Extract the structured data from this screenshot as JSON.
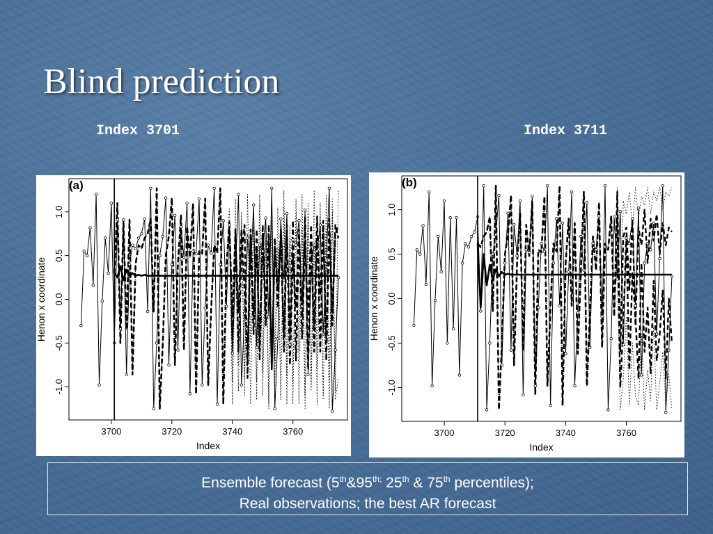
{
  "slide": {
    "title": "Blind prediction",
    "subtitle_left": "Index 3701",
    "subtitle_right": "Index 3711",
    "legend_line1_parts": {
      "a": "Ensemble forecast (5",
      "sup1": "th",
      "b": "&95",
      "sup2": "th;",
      "c": " 25",
      "sup3": "th",
      "d": " & 75",
      "sup4": "th",
      "e": " percentiles);"
    },
    "legend_line2": "Real observations; the best AR forecast"
  },
  "chart_data": [
    {
      "type": "line",
      "panel_label": "(a)",
      "xlabel": "Index",
      "ylabel": "Henon x coordinate",
      "xlim": [
        3686,
        3778
      ],
      "ylim": [
        -1.38,
        1.38
      ],
      "xticks": [
        "3700",
        "3720",
        "3740",
        "3760"
      ],
      "yticks": [
        "-1.0",
        "-0.5",
        "0.0",
        "0.5",
        "1.0"
      ],
      "forecast_origin": 3701,
      "series": [
        {
          "style": "thin-solid-circles",
          "x_start": 3690,
          "values": [
            -0.3,
            0.55,
            0.5,
            0.82,
            0.16,
            1.2,
            -0.98,
            -0.02,
            0.7,
            0.3,
            1.1,
            -0.5,
            0.91,
            -0.34,
            0.91,
            -0.86,
            0.4,
            0.62,
            0.58,
            0.7,
            0.75,
            0.92,
            -0.14,
            1.27,
            -1.25,
            -0.5,
            0.5,
            0.72,
            1.16,
            -0.75,
            0.4,
            0.96,
            -0.58,
            0.83,
            0.48,
            1.1,
            -1.08,
            0.55,
            0.52,
            1.15,
            -0.98,
            -0.1,
            0.62,
            0.53,
            1.27,
            -1.2,
            0.4,
            0.9,
            -0.08,
            0.85,
            -0.62,
            0.3,
            1.2,
            -0.98,
            -0.16,
            0.7,
            0.32,
            1.08,
            -0.55,
            0.62,
            0.55,
            0.93,
            -0.2,
            1.27,
            -1.25,
            -0.45,
            0.92,
            0.22,
            0.98,
            -0.52,
            0.68,
            0.62,
            0.9,
            -0.08,
            1.02,
            -0.86,
            0.4,
            0.62,
            0.55,
            0.85,
            -0.4,
            0.45,
            1.27,
            -1.28,
            -0.58,
            0.25
          ]
        },
        {
          "style": "thick-solid",
          "x_start": 3701,
          "values": [
            0.3,
            0.25,
            0.38,
            0.22,
            0.34,
            0.26,
            0.3,
            0.27,
            0.28,
            0.27,
            0.28,
            0.27,
            0.27,
            0.27,
            0.27,
            0.27,
            0.27,
            0.27,
            0.27,
            0.27,
            0.27,
            0.27,
            0.27,
            0.27,
            0.27,
            0.27,
            0.27,
            0.27,
            0.27,
            0.27,
            0.27,
            0.27,
            0.27,
            0.27,
            0.27,
            0.27,
            0.27,
            0.27,
            0.27,
            0.27,
            0.27,
            0.27,
            0.27,
            0.27,
            0.27,
            0.27,
            0.27,
            0.27,
            0.27,
            0.27,
            0.27,
            0.27,
            0.27,
            0.27,
            0.27,
            0.27,
            0.27,
            0.27,
            0.27,
            0.27,
            0.27,
            0.27,
            0.27,
            0.27,
            0.27,
            0.27,
            0.27,
            0.27,
            0.27,
            0.27,
            0.27,
            0.27,
            0.27,
            0.27,
            0.27
          ]
        },
        {
          "style": "dashed",
          "x_start": 3701,
          "values": [
            0.3,
            1.1,
            -0.5,
            0.91,
            -0.34,
            0.91,
            -0.86,
            0.4,
            0.62,
            0.58,
            0.7,
            0.75,
            0.92,
            -0.14,
            1.27,
            -1.25,
            -0.5,
            0.5,
            0.72,
            1.16,
            -0.75,
            0.4,
            0.96,
            -0.58,
            0.83,
            0.48,
            1.1,
            -1.08,
            0.55,
            0.52,
            1.15,
            -0.98,
            -0.1,
            0.62,
            0.53,
            1.27,
            -1.2,
            0.3,
            0.85,
            -0.2,
            0.8,
            -0.6,
            0.5,
            0.85,
            -0.9,
            0.7,
            -0.4,
            0.8,
            -0.7,
            0.75,
            -0.3,
            0.85,
            -0.8,
            0.7,
            -0.1,
            0.8,
            -0.6,
            0.75,
            -0.45,
            0.9,
            -0.7,
            0.72,
            -0.2,
            0.95,
            -0.8,
            0.6,
            -0.3,
            0.95,
            -0.6,
            0.8,
            -0.45,
            0.92,
            -0.15,
            0.75,
            0.85
          ]
        },
        {
          "style": "dashed",
          "x_start": 3701,
          "values": [
            0.3,
            1.1,
            -0.5,
            0.91,
            -0.34,
            0.91,
            -0.86,
            0.4,
            0.62,
            0.58,
            0.7,
            0.75,
            0.92,
            -0.14,
            1.27,
            -1.25,
            -0.5,
            0.5,
            0.72,
            1.16,
            -0.75,
            0.4,
            0.96,
            -0.58,
            0.83,
            0.48,
            1.1,
            -1.08,
            0.55,
            0.52,
            1.15,
            -0.98,
            -0.1,
            0.62,
            0.53,
            1.27,
            -1.2,
            0.35,
            0.9,
            -0.45,
            0.7,
            -0.15,
            0.8,
            0.1,
            -0.7,
            0.8,
            -0.2,
            0.6,
            -0.55,
            0.85,
            -0.1,
            0.7,
            -0.8,
            0.6,
            0.15,
            0.7,
            -0.4,
            0.85,
            -0.75,
            0.5,
            -0.1,
            0.8,
            -0.45,
            0.65,
            -0.2,
            0.85,
            -0.6,
            0.7,
            0.05,
            0.9,
            -0.7,
            0.8,
            -0.3,
            0.85,
            0.7
          ]
        },
        {
          "style": "dotted",
          "x_start": 3701,
          "values": [
            0.3,
            1.1,
            -0.5,
            0.91,
            -0.34,
            0.91,
            -0.86,
            0.4,
            0.62,
            0.58,
            0.7,
            0.75,
            0.92,
            -0.14,
            1.27,
            -1.25,
            -0.5,
            0.5,
            0.72,
            1.16,
            -0.75,
            0.4,
            0.96,
            -0.58,
            0.83,
            0.48,
            1.1,
            -1.08,
            0.55,
            0.52,
            1.15,
            -0.98,
            -0.1,
            0.62,
            0.53,
            1.27,
            -1.2,
            0.4,
            1.05,
            -0.95,
            1.15,
            -0.75,
            0.9,
            -1.1,
            1.2,
            -0.5,
            1.0,
            -1.15,
            1.2,
            -0.85,
            0.95,
            -1.2,
            1.1,
            -0.7,
            1.05,
            -1.1,
            1.25,
            -0.9,
            0.85,
            -1.2,
            1.15,
            -0.6,
            1.2,
            -1.1,
            0.95,
            -1.0,
            1.25,
            -0.8,
            1.1,
            -1.15,
            1.2,
            -0.95,
            1.15,
            -1.05,
            1.25
          ]
        },
        {
          "style": "dotted",
          "x_start": 3701,
          "values": [
            0.3,
            1.1,
            -0.5,
            0.91,
            -0.34,
            0.91,
            -0.86,
            0.4,
            0.62,
            0.58,
            0.7,
            0.75,
            0.92,
            -0.14,
            1.27,
            -1.25,
            -0.5,
            0.5,
            0.72,
            1.16,
            -0.75,
            0.4,
            0.96,
            -0.58,
            0.83,
            0.48,
            1.1,
            -1.08,
            0.55,
            0.52,
            1.15,
            -0.98,
            -0.1,
            0.62,
            0.53,
            1.27,
            -1.2,
            -0.1,
            0.9,
            -1.2,
            0.6,
            -1.05,
            1.0,
            -0.9,
            0.75,
            -1.2,
            0.85,
            -0.95,
            1.1,
            -1.1,
            0.7,
            -1.25,
            0.9,
            -1.0,
            0.6,
            -1.15,
            1.05,
            -1.2,
            0.7,
            -0.95,
            1.0,
            -1.2,
            0.8,
            -1.25,
            1.1,
            -1.05,
            0.65,
            -1.2,
            0.95,
            -1.1,
            0.8,
            -1.25,
            1.0,
            -1.15,
            -0.9
          ]
        }
      ]
    },
    {
      "type": "line",
      "panel_label": "(b)",
      "xlabel": "Index",
      "ylabel": "Henon x coordinate",
      "xlim": [
        3686,
        3778
      ],
      "ylim": [
        -1.38,
        1.38
      ],
      "xticks": [
        "3700",
        "3720",
        "3740",
        "3760"
      ],
      "yticks": [
        "-1.0",
        "-0.5",
        "0.0",
        "0.5",
        "1.0"
      ],
      "forecast_origin": 3711,
      "series": [
        {
          "style": "thin-solid-circles",
          "x_start": 3690,
          "values": [
            -0.3,
            0.55,
            0.5,
            0.82,
            0.16,
            1.2,
            -0.98,
            -0.02,
            0.7,
            0.3,
            1.1,
            -0.5,
            0.91,
            -0.34,
            0.91,
            -0.86,
            0.4,
            0.62,
            0.58,
            0.7,
            0.75,
            0.92,
            -0.14,
            1.27,
            -1.25,
            -0.5,
            0.5,
            0.72,
            1.16,
            -0.75,
            0.4,
            0.96,
            -0.58,
            0.83,
            0.48,
            1.1,
            -1.08,
            0.55,
            0.52,
            1.15,
            -0.98,
            -0.1,
            0.62,
            0.53,
            1.27,
            -1.2,
            0.4,
            0.9,
            -0.08,
            0.85,
            -0.62,
            0.3,
            1.2,
            -0.98,
            -0.16,
            0.7,
            0.32,
            1.08,
            -0.55,
            0.62,
            0.55,
            0.93,
            -0.2,
            1.27,
            -1.25,
            -0.45,
            0.92,
            0.22,
            0.98,
            -0.52,
            0.68,
            0.62,
            0.9,
            -0.08,
            1.02,
            -0.86,
            0.4,
            0.62,
            0.55,
            0.85,
            -0.4,
            0.45,
            1.27,
            -1.28,
            -0.58,
            0.25
          ]
        },
        {
          "style": "thick-solid",
          "x_start": 3711,
          "values": [
            0.62,
            -0.1,
            0.5,
            0.15,
            0.38,
            0.22,
            0.33,
            0.25,
            0.3,
            0.27,
            0.28,
            0.27,
            0.27,
            0.27,
            0.27,
            0.27,
            0.27,
            0.27,
            0.27,
            0.27,
            0.27,
            0.27,
            0.27,
            0.27,
            0.27,
            0.27,
            0.27,
            0.27,
            0.27,
            0.27,
            0.27,
            0.27,
            0.27,
            0.27,
            0.27,
            0.27,
            0.27,
            0.27,
            0.27,
            0.27,
            0.27,
            0.27,
            0.27,
            0.27,
            0.27,
            0.27,
            0.27,
            0.27,
            0.27,
            0.27,
            0.27,
            0.27,
            0.27,
            0.27,
            0.27,
            0.27,
            0.27,
            0.27,
            0.27,
            0.27,
            0.27,
            0.27,
            0.27,
            0.27,
            0.27
          ]
        },
        {
          "style": "dashed",
          "x_start": 3711,
          "values": [
            0.62,
            0.58,
            0.7,
            0.75,
            0.92,
            -0.14,
            1.27,
            -1.25,
            -0.5,
            0.5,
            0.72,
            1.16,
            -0.75,
            0.4,
            0.96,
            -0.58,
            0.83,
            0.48,
            1.1,
            -1.08,
            0.55,
            0.52,
            1.15,
            -0.98,
            -0.1,
            0.62,
            0.53,
            1.27,
            -1.2,
            0.4,
            0.9,
            -0.08,
            0.85,
            -0.62,
            0.3,
            1.2,
            -0.98,
            -0.16,
            0.7,
            0.32,
            1.08,
            -0.55,
            0.62,
            0.55,
            0.93,
            -0.2,
            1.2,
            -0.6,
            0.7,
            0.8,
            0.1,
            0.9,
            -0.3,
            0.8,
            0.6,
            1.0,
            0.4,
            0.9,
            0.65,
            0.95,
            0.5,
            0.85,
            0.6,
            0.8,
            0.75
          ]
        },
        {
          "style": "dashed",
          "x_start": 3711,
          "values": [
            0.62,
            0.58,
            0.7,
            0.75,
            0.92,
            -0.14,
            1.27,
            -1.25,
            -0.5,
            0.5,
            0.72,
            1.16,
            -0.75,
            0.4,
            0.96,
            -0.58,
            0.83,
            0.48,
            1.1,
            -1.08,
            0.55,
            0.52,
            1.15,
            -0.98,
            -0.1,
            0.62,
            0.53,
            1.27,
            -1.2,
            0.4,
            0.9,
            -0.08,
            0.85,
            -0.62,
            0.3,
            1.2,
            -0.98,
            -0.16,
            0.7,
            0.32,
            1.08,
            -0.55,
            0.62,
            0.55,
            0.93,
            -0.2,
            0.9,
            -1.0,
            -0.3,
            0.7,
            -0.8,
            0.3,
            -0.2,
            -0.9,
            0.4,
            -0.6,
            -0.1,
            -0.85,
            0.2,
            -0.7,
            -0.4,
            0.1,
            -0.9,
            0.0,
            -0.5
          ]
        },
        {
          "style": "dotted",
          "x_start": 3711,
          "values": [
            0.62,
            0.58,
            0.7,
            0.75,
            0.92,
            -0.14,
            1.27,
            -1.25,
            -0.5,
            0.5,
            0.72,
            1.16,
            -0.75,
            0.4,
            0.96,
            -0.58,
            0.83,
            0.48,
            1.1,
            -1.08,
            0.55,
            0.52,
            1.15,
            -0.98,
            -0.1,
            0.62,
            0.53,
            1.27,
            -1.2,
            0.4,
            0.9,
            -0.08,
            0.85,
            -0.62,
            0.3,
            1.2,
            -0.98,
            -0.16,
            0.7,
            0.32,
            1.08,
            -0.55,
            0.62,
            0.55,
            0.93,
            -0.2,
            1.25,
            -0.4,
            1.1,
            0.95,
            1.2,
            0.8,
            1.25,
            0.9,
            1.15,
            1.05,
            1.25,
            0.95,
            1.2,
            1.1,
            1.25,
            1.0,
            1.2,
            1.15,
            1.25
          ]
        },
        {
          "style": "dotted",
          "x_start": 3711,
          "values": [
            0.62,
            0.58,
            0.7,
            0.75,
            0.92,
            -0.14,
            1.27,
            -1.25,
            -0.5,
            0.5,
            0.72,
            1.16,
            -0.75,
            0.4,
            0.96,
            -0.58,
            0.83,
            0.48,
            1.1,
            -1.08,
            0.55,
            0.52,
            1.15,
            -0.98,
            -0.1,
            0.62,
            0.53,
            1.27,
            -1.2,
            0.4,
            0.9,
            -0.08,
            0.85,
            -0.62,
            0.3,
            1.2,
            -0.98,
            -0.16,
            0.7,
            0.32,
            1.08,
            -0.55,
            0.62,
            0.55,
            0.93,
            -0.2,
            0.5,
            -1.25,
            -0.9,
            -0.2,
            -1.2,
            -0.5,
            -1.1,
            -1.2,
            -0.4,
            -1.25,
            -0.8,
            -1.15,
            -0.3,
            -1.25,
            -0.95,
            -0.6,
            -1.2,
            -0.85,
            -1.25
          ]
        }
      ]
    }
  ]
}
